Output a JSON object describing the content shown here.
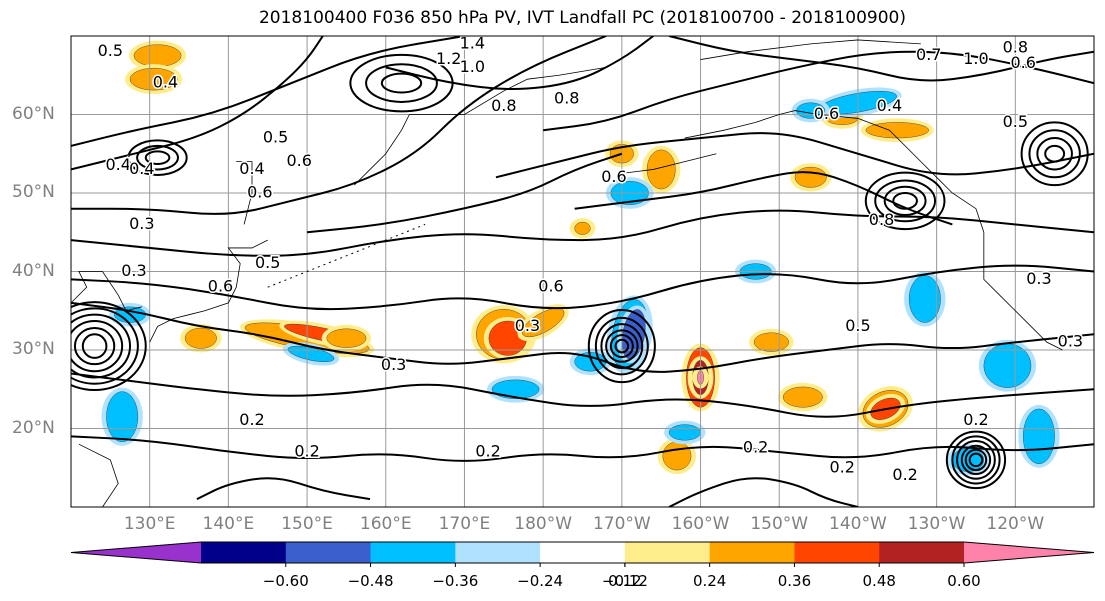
{
  "title": "2018100400 F036 850 hPa PV, IVT Landfall PC (2018100700 - 2018100900)",
  "lat_labels": [
    {
      "text": "60°N",
      "lat": 60
    },
    {
      "text": "50°N",
      "lat": 50
    },
    {
      "text": "40°N",
      "lat": 40
    },
    {
      "text": "30°N",
      "lat": 30
    },
    {
      "text": "20°N",
      "lat": 20
    }
  ],
  "lon_labels": [
    {
      "text": "130°E",
      "lon": 130
    },
    {
      "text": "140°E",
      "lon": 140
    },
    {
      "text": "150°E",
      "lon": 150
    },
    {
      "text": "160°E",
      "lon": 160
    },
    {
      "text": "170°E",
      "lon": 170
    },
    {
      "text": "180°W",
      "lon": 180
    },
    {
      "text": "170°W",
      "lon": 190
    },
    {
      "text": "160°W",
      "lon": 200
    },
    {
      "text": "150°W",
      "lon": 210
    },
    {
      "text": "140°W",
      "lon": 220
    },
    {
      "text": "130°W",
      "lon": 230
    },
    {
      "text": "120°W",
      "lon": 240
    }
  ],
  "colorbar": {
    "colors": [
      "#9932CC",
      "#00008B",
      "#3A5FCD",
      "#00BFFF",
      "#B0E2FF",
      "#FFFFFF",
      "#FFEC8B",
      "#FFA500",
      "#FF4500",
      "#B22222",
      "#FF82AB"
    ],
    "tick_labels": [
      "−0.60",
      "−0.48",
      "−0.36",
      "−0.24",
      "−0.12",
      "0.12",
      "0.24",
      "0.36",
      "0.48",
      "0.60"
    ]
  },
  "contour_labels": [
    "0.5",
    "0.4",
    "1.4",
    "1.2",
    "1.0",
    "0.8",
    "0.6",
    "1.0",
    "0.7",
    "0.6",
    "0.4",
    "0.5",
    "0.4",
    "0.8",
    "0.8",
    "0.4",
    "0.5",
    "0.6",
    "0.3",
    "0.6",
    "0.4",
    "0.3",
    "0.5",
    "0.6",
    "0.3",
    "0.3",
    "0.5",
    "0.6",
    "0.6",
    "0.8",
    "0.3",
    "0.2",
    "0.2",
    "0.3",
    "0.2",
    "0.2",
    "0.2",
    "0.2",
    "0.2"
  ],
  "shading": [
    {
      "v": 0.3,
      "lon": 150,
      "lat": 31.5,
      "rx": 8,
      "ry": 1.4,
      "rot": 10
    },
    {
      "v": 0.36,
      "lon": 152,
      "lat": 32,
      "rx": 5,
      "ry": 0.8,
      "rot": 12
    },
    {
      "v": 0.3,
      "lon": 175,
      "lat": 32,
      "rx": 3.5,
      "ry": 3.2,
      "rot": 0
    },
    {
      "v": 0.36,
      "lon": 175.5,
      "lat": 31.5,
      "rx": 2.4,
      "ry": 2.2,
      "rot": 0
    },
    {
      "v": 0.3,
      "lon": 180,
      "lat": 33.5,
      "rx": 3,
      "ry": 1.2,
      "rot": -30
    },
    {
      "v": 0.42,
      "lon": 200,
      "lat": 26.5,
      "rx": 1.8,
      "ry": 3.8,
      "rot": 0
    },
    {
      "v": 0.48,
      "lon": 200,
      "lat": 26.5,
      "rx": 1.0,
      "ry": 2.2,
      "rot": 0
    },
    {
      "v": 0.62,
      "lon": 200,
      "lat": 26.5,
      "rx": 0.4,
      "ry": 0.9,
      "rot": 0
    },
    {
      "v": -0.3,
      "lon": 191,
      "lat": 32,
      "rx": 2.2,
      "ry": 4.5,
      "rot": 10
    },
    {
      "v": -0.4,
      "lon": 191.5,
      "lat": 32,
      "rx": 1.4,
      "ry": 3.2,
      "rot": 10
    },
    {
      "v": 0.3,
      "lon": 197,
      "lat": 16.5,
      "rx": 1.8,
      "ry": 1.8,
      "rot": 0
    },
    {
      "v": 0.3,
      "lon": 223.5,
      "lat": 22.5,
      "rx": 3,
      "ry": 2.2,
      "rot": -25
    },
    {
      "v": 0.36,
      "lon": 223.5,
      "lat": 22.5,
      "rx": 2,
      "ry": 1.2,
      "rot": -25
    },
    {
      "v": 0.3,
      "lon": 213,
      "lat": 24,
      "rx": 2.5,
      "ry": 1.3,
      "rot": 0
    },
    {
      "v": 0.3,
      "lon": 209,
      "lat": 31,
      "rx": 2.2,
      "ry": 1.2,
      "rot": 0
    },
    {
      "v": 0.3,
      "lon": 214,
      "lat": 52,
      "rx": 2,
      "ry": 1.3,
      "rot": 0
    },
    {
      "v": 0.3,
      "lon": 195,
      "lat": 53,
      "rx": 1.8,
      "ry": 2.5,
      "rot": 0
    },
    {
      "v": 0.3,
      "lon": 225,
      "lat": 58,
      "rx": 4,
      "ry": 1.0,
      "rot": 0
    },
    {
      "v": 0.3,
      "lon": 155,
      "lat": 31.5,
      "rx": 2.5,
      "ry": 1.2,
      "rot": 0
    },
    {
      "v": 0.3,
      "lon": 131,
      "lat": 67.5,
      "rx": 3,
      "ry": 1.4,
      "rot": 0
    },
    {
      "v": 0.3,
      "lon": 130.5,
      "lat": 64.5,
      "rx": 3,
      "ry": 1.4,
      "rot": 0
    },
    {
      "v": 0.3,
      "lon": 136.5,
      "lat": 31.5,
      "rx": 2,
      "ry": 1.3,
      "rot": 0
    },
    {
      "v": 0.3,
      "lon": 190,
      "lat": 55,
      "rx": 1.5,
      "ry": 1.2,
      "rot": 0
    },
    {
      "v": 0.3,
      "lon": 185,
      "lat": 45.5,
      "rx": 1.0,
      "ry": 0.8,
      "rot": 0
    },
    {
      "v": 0.3,
      "lon": 218,
      "lat": 59.5,
      "rx": 2,
      "ry": 0.8,
      "rot": 0
    },
    {
      "v": -0.3,
      "lon": 150.5,
      "lat": 29.5,
      "rx": 3,
      "ry": 0.8,
      "rot": 12
    },
    {
      "v": -0.3,
      "lon": 239,
      "lat": 28,
      "rx": 3,
      "ry": 2.8,
      "rot": 0
    },
    {
      "v": -0.3,
      "lon": 243,
      "lat": 19,
      "rx": 2,
      "ry": 3.5,
      "rot": 0
    },
    {
      "v": -0.3,
      "lon": 126.5,
      "lat": 21.5,
      "rx": 2,
      "ry": 3.2,
      "rot": 0
    },
    {
      "v": -0.3,
      "lon": 228.5,
      "lat": 36.5,
      "rx": 2,
      "ry": 3,
      "rot": 0
    },
    {
      "v": -0.3,
      "lon": 220,
      "lat": 61.5,
      "rx": 5,
      "ry": 1.2,
      "rot": -10
    },
    {
      "v": -0.3,
      "lon": 191,
      "lat": 50,
      "rx": 2.4,
      "ry": 1.5,
      "rot": 0
    },
    {
      "v": -0.3,
      "lon": 176.5,
      "lat": 25,
      "rx": 3,
      "ry": 1.2,
      "rot": 0
    },
    {
      "v": -0.3,
      "lon": 186,
      "lat": 28.5,
      "rx": 2,
      "ry": 1.2,
      "rot": 0
    },
    {
      "v": -0.3,
      "lon": 198,
      "lat": 19.5,
      "rx": 2,
      "ry": 1.0,
      "rot": 0
    },
    {
      "v": -0.3,
      "lon": 214,
      "lat": 60.5,
      "rx": 1.8,
      "ry": 1.0,
      "rot": 0
    },
    {
      "v": -0.3,
      "lon": 207,
      "lat": 40,
      "rx": 2,
      "ry": 1.0,
      "rot": 0
    },
    {
      "v": -0.3,
      "lon": 234,
      "lat": 16,
      "rx": 2,
      "ry": 1.5,
      "rot": 0
    },
    {
      "v": -0.3,
      "lon": 127.5,
      "lat": 34.5,
      "rx": 2,
      "ry": 1.0,
      "rot": 0
    }
  ],
  "contours": [
    {
      "w": 2,
      "pts": [
        [
          120,
          56
        ],
        [
          128,
          58
        ],
        [
          138,
          60
        ],
        [
          148,
          64
        ],
        [
          158,
          68
        ],
        [
          170,
          70
        ]
      ]
    },
    {
      "w": 2,
      "pts": [
        [
          120,
          53
        ],
        [
          128,
          55
        ],
        [
          136,
          57
        ],
        [
          142,
          60
        ],
        [
          147,
          64
        ],
        [
          150,
          67
        ],
        [
          152,
          70
        ]
      ]
    },
    {
      "w": 2,
      "pts": [
        [
          120,
          48
        ],
        [
          130,
          48
        ],
        [
          140,
          47
        ],
        [
          148,
          49
        ],
        [
          156,
          51
        ],
        [
          164,
          55
        ],
        [
          170,
          61
        ],
        [
          178,
          66
        ],
        [
          188,
          70
        ]
      ]
    },
    {
      "w": 2,
      "pts": [
        [
          120,
          44
        ],
        [
          130,
          43
        ],
        [
          140,
          42
        ],
        [
          150,
          42
        ],
        [
          160,
          44
        ],
        [
          170,
          45
        ],
        [
          180,
          44
        ],
        [
          190,
          44
        ],
        [
          200,
          47
        ],
        [
          210,
          48
        ],
        [
          220,
          47
        ],
        [
          230,
          47
        ],
        [
          240,
          46
        ],
        [
          250,
          45
        ]
      ]
    },
    {
      "w": 2,
      "pts": [
        [
          120,
          39
        ],
        [
          130,
          38.5
        ],
        [
          140,
          37
        ],
        [
          150,
          35
        ],
        [
          160,
          35.5
        ],
        [
          170,
          37
        ],
        [
          180,
          35
        ],
        [
          190,
          36
        ],
        [
          200,
          39
        ],
        [
          210,
          40
        ],
        [
          220,
          38
        ],
        [
          230,
          40
        ],
        [
          240,
          41
        ],
        [
          250,
          40
        ]
      ]
    },
    {
      "w": 2,
      "pts": [
        [
          120,
          36
        ],
        [
          128,
          35
        ],
        [
          136,
          33
        ],
        [
          144,
          32
        ],
        [
          152,
          30
        ],
        [
          160,
          29
        ],
        [
          168,
          28
        ],
        [
          176,
          29
        ],
        [
          184,
          30
        ],
        [
          192,
          27
        ],
        [
          200,
          27.5
        ],
        [
          208,
          29
        ],
        [
          216,
          30
        ],
        [
          224,
          31
        ],
        [
          232,
          30
        ],
        [
          240,
          31
        ],
        [
          250,
          32
        ]
      ]
    },
    {
      "w": 2,
      "pts": [
        [
          120,
          27
        ],
        [
          128,
          26
        ],
        [
          136,
          25
        ],
        [
          146,
          24
        ],
        [
          156,
          24.5
        ],
        [
          166,
          26
        ],
        [
          176,
          24
        ],
        [
          186,
          22.5
        ],
        [
          196,
          24
        ],
        [
          206,
          23
        ],
        [
          216,
          21
        ],
        [
          226,
          23
        ],
        [
          236,
          24
        ],
        [
          250,
          25
        ]
      ]
    },
    {
      "w": 2,
      "pts": [
        [
          120,
          19
        ],
        [
          130,
          18.5
        ],
        [
          140,
          17
        ],
        [
          150,
          16
        ],
        [
          160,
          17
        ],
        [
          170,
          15.5
        ],
        [
          180,
          17
        ],
        [
          190,
          16
        ],
        [
          200,
          18
        ],
        [
          210,
          17
        ],
        [
          220,
          16
        ],
        [
          230,
          18
        ],
        [
          240,
          17
        ],
        [
          250,
          18
        ]
      ]
    },
    {
      "w": 2,
      "pts": [
        [
          136,
          11
        ],
        [
          140,
          13
        ],
        [
          146,
          14
        ],
        [
          152,
          12
        ],
        [
          158,
          11
        ]
      ]
    },
    {
      "w": 2,
      "pts": [
        [
          196,
          10
        ],
        [
          200,
          12
        ],
        [
          206,
          14
        ],
        [
          212,
          13
        ],
        [
          216,
          11
        ],
        [
          220,
          10
        ]
      ]
    },
    {
      "w": 2,
      "pts": [
        [
          180,
          58
        ],
        [
          188,
          59
        ],
        [
          196,
          62
        ],
        [
          204,
          64
        ],
        [
          212,
          66
        ],
        [
          222,
          68
        ],
        [
          232,
          68
        ],
        [
          242,
          66
        ],
        [
          250,
          64
        ]
      ]
    },
    {
      "w": 2,
      "pts": [
        [
          174,
          52
        ],
        [
          182,
          54
        ],
        [
          190,
          56
        ],
        [
          200,
          57
        ],
        [
          210,
          58
        ],
        [
          220,
          55
        ],
        [
          230,
          52
        ],
        [
          240,
          53
        ],
        [
          250,
          55
        ]
      ]
    },
    {
      "w": 2,
      "pts": [
        [
          160,
          66
        ],
        [
          168,
          64
        ],
        [
          176,
          63
        ],
        [
          184,
          64
        ],
        [
          190,
          67
        ],
        [
          194,
          70
        ]
      ]
    },
    {
      "w": 2,
      "pts": [
        [
          196,
          70
        ],
        [
          204,
          68
        ],
        [
          212,
          67
        ],
        [
          220,
          66
        ],
        [
          228,
          64
        ],
        [
          236,
          65
        ],
        [
          244,
          67
        ],
        [
          250,
          68
        ]
      ]
    },
    {
      "w": 2,
      "pts": [
        [
          150,
          45
        ],
        [
          160,
          46
        ],
        [
          170,
          48
        ],
        [
          178,
          50
        ],
        [
          184,
          53
        ],
        [
          190,
          55
        ]
      ]
    },
    {
      "w": 2,
      "pts": [
        [
          184,
          48
        ],
        [
          192,
          49
        ],
        [
          200,
          50
        ],
        [
          208,
          52
        ],
        [
          214,
          53
        ],
        [
          220,
          51
        ],
        [
          226,
          48
        ],
        [
          232,
          46
        ]
      ]
    }
  ],
  "rings": [
    {
      "lon": 123,
      "lat": 30.5,
      "rx": [
        1.5,
        2.5,
        3.5,
        4.5,
        5.5,
        6.5
      ],
      "ry": [
        1.5,
        2.3,
        3.2,
        4.0,
        4.8,
        5.6
      ]
    },
    {
      "lon": 190,
      "lat": 30.5,
      "rx": [
        0.8,
        1.4,
        2.0,
        2.6,
        3.3,
        4.2
      ],
      "ry": [
        0.8,
        1.4,
        2.0,
        2.8,
        3.6,
        4.6
      ]
    },
    {
      "lon": 235,
      "lat": 16,
      "rx": [
        0.8,
        1.3,
        1.8,
        2.4,
        3.0,
        3.7
      ],
      "ry": [
        0.8,
        1.3,
        1.8,
        2.4,
        3.0,
        3.6
      ]
    },
    {
      "lon": 226,
      "lat": 49,
      "rx": [
        1.5,
        2.6,
        3.8,
        5.0
      ],
      "ry": [
        1.0,
        1.8,
        2.6,
        3.6
      ]
    },
    {
      "lon": 162,
      "lat": 64,
      "rx": [
        2.5,
        4.5,
        6.5
      ],
      "ry": [
        1.2,
        2.4,
        3.6
      ]
    },
    {
      "lon": 245,
      "lat": 55,
      "rx": [
        1.2,
        2.2,
        3.2,
        4.2
      ],
      "ry": [
        1.0,
        2.0,
        3.0,
        4.0
      ]
    },
    {
      "lon": 131,
      "lat": 54.5,
      "rx": [
        1.5,
        2.6,
        3.7
      ],
      "ry": [
        0.8,
        1.5,
        2.2
      ]
    }
  ]
}
